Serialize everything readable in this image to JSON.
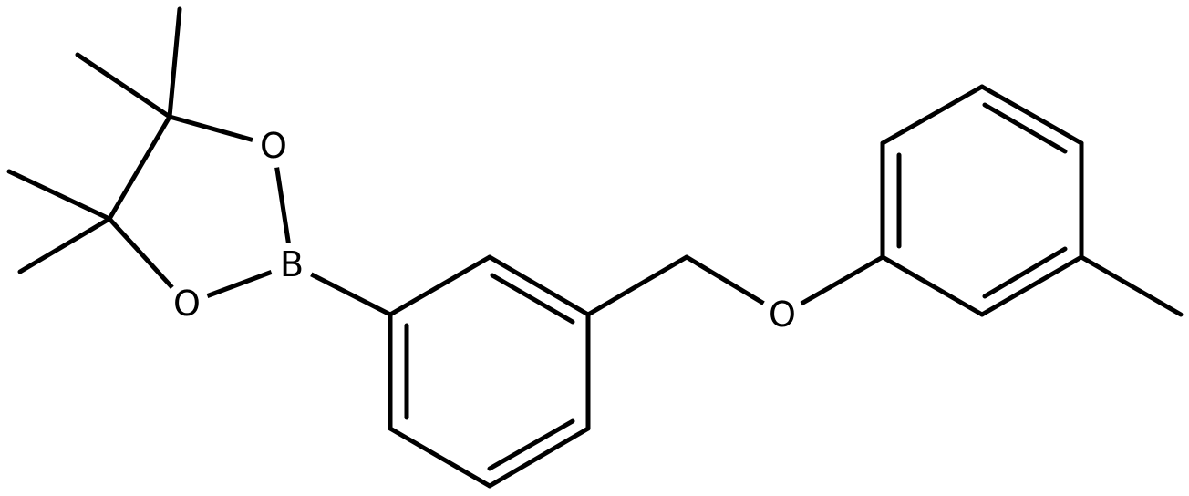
{
  "atoms": [
    {
      "label": "O"
    },
    {
      "label": "B"
    },
    {
      "label": "O"
    },
    {
      "label": "O"
    }
  ]
}
